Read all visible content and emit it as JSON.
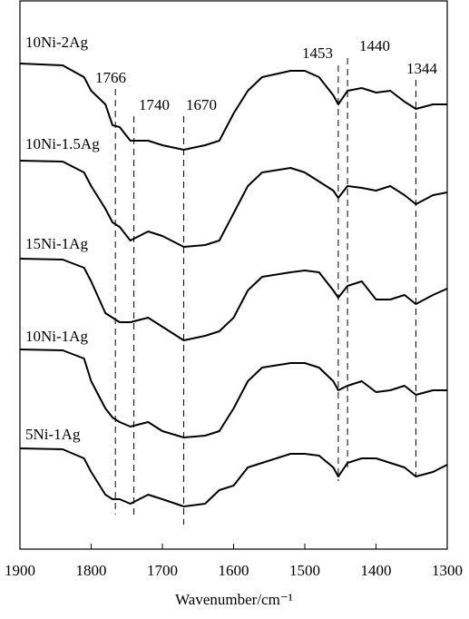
{
  "chart_data": {
    "type": "line",
    "x_label": "Wavenumber/cm⁻¹",
    "x": [
      1900,
      1840,
      1810,
      1800,
      1780,
      1770,
      1760,
      1745,
      1720,
      1700,
      1670,
      1640,
      1620,
      1600,
      1580,
      1560,
      1520,
      1500,
      1480,
      1460,
      1453,
      1440,
      1420,
      1400,
      1380,
      1360,
      1344,
      1320,
      1300
    ],
    "series": [
      {
        "name": "10Ni-2Ag",
        "color": "#000000",
        "values": [
          535,
          533,
          520,
          505,
          490,
          467,
          465,
          450,
          450,
          445,
          440,
          445,
          450,
          480,
          505,
          520,
          527,
          527,
          520,
          500,
          490,
          505,
          508,
          503,
          505,
          493,
          485,
          490,
          490
        ]
      },
      {
        "name": "10Ni-1.5Ag",
        "color": "#000000",
        "values": [
          428,
          427,
          415,
          400,
          375,
          360,
          355,
          340,
          350,
          345,
          333,
          335,
          340,
          370,
          400,
          415,
          420,
          415,
          405,
          395,
          387,
          400,
          398,
          395,
          400,
          390,
          380,
          390,
          393
        ]
      },
      {
        "name": "15Ni-1Ag",
        "color": "#000000",
        "values": [
          320,
          319,
          310,
          295,
          260,
          255,
          250,
          250,
          255,
          245,
          230,
          235,
          240,
          255,
          285,
          300,
          305,
          307,
          305,
          285,
          277,
          290,
          295,
          275,
          275,
          280,
          270,
          280,
          287
        ]
      },
      {
        "name": "10Ni-1Ag",
        "color": "#000000",
        "values": [
          220,
          219,
          210,
          185,
          155,
          145,
          140,
          135,
          140,
          130,
          123,
          125,
          130,
          155,
          185,
          200,
          205,
          205,
          200,
          185,
          175,
          180,
          185,
          173,
          175,
          180,
          170,
          175,
          175
        ]
      },
      {
        "name": "5Ni-1Ag",
        "color": "#000000",
        "values": [
          111,
          110,
          100,
          85,
          60,
          55,
          55,
          50,
          60,
          55,
          47,
          50,
          65,
          70,
          90,
          95,
          105,
          105,
          103,
          90,
          80,
          95,
          100,
          100,
          95,
          90,
          80,
          85,
          93
        ]
      }
    ],
    "peaks": [
      1766,
      1740,
      1670,
      1453,
      1440,
      1344
    ],
    "xlim": [
      1900,
      1300
    ],
    "xticks": [
      1900,
      1800,
      1700,
      1600,
      1500,
      1400,
      1300
    ],
    "ylim": [
      0,
      605
    ]
  }
}
